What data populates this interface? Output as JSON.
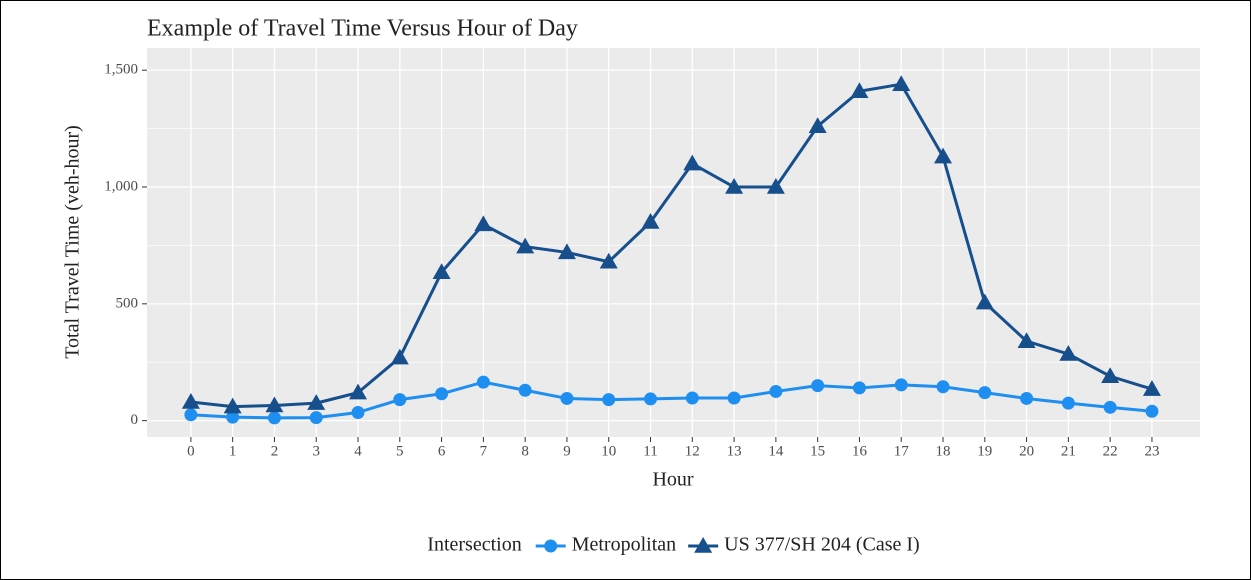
{
  "chart_data": {
    "type": "line",
    "title": "Example of Travel Time Versus Hour of Day",
    "x_label": "Hour",
    "y_label": "Total Travel Time (veh-hour)",
    "legend_title": "Intersection",
    "legend_position": "bottom",
    "grid": true,
    "x": [
      0,
      1,
      2,
      3,
      4,
      5,
      6,
      7,
      8,
      9,
      10,
      11,
      12,
      13,
      14,
      15,
      16,
      17,
      18,
      19,
      20,
      21,
      22,
      23
    ],
    "xlim": [
      -1.05,
      24.15
    ],
    "xticks": [
      0,
      1,
      2,
      3,
      4,
      5,
      6,
      7,
      8,
      9,
      10,
      11,
      12,
      13,
      14,
      15,
      16,
      17,
      18,
      19,
      20,
      21,
      22,
      23
    ],
    "ylim": [
      -70,
      1595
    ],
    "yticks": [
      0,
      500,
      {
        "value": 1000,
        "label": "1,000"
      },
      {
        "value": 1500,
        "label": "1,500"
      }
    ],
    "series": [
      {
        "name": "Metropolitan",
        "color": "#1e8ff0",
        "marker": "circle",
        "values": [
          25,
          15,
          12,
          13,
          35,
          90,
          115,
          165,
          130,
          95,
          90,
          93,
          97,
          97,
          125,
          150,
          140,
          153,
          145,
          120,
          95,
          75,
          57,
          40
        ]
      },
      {
        "name": "US 377/SH 204 (Case I)",
        "color": "#174e8c",
        "marker": "triangle",
        "values": [
          80,
          60,
          65,
          75,
          120,
          270,
          635,
          840,
          745,
          720,
          680,
          850,
          1100,
          1000,
          1000,
          1260,
          1410,
          1440,
          1130,
          505,
          340,
          285,
          190,
          135
        ]
      }
    ]
  }
}
